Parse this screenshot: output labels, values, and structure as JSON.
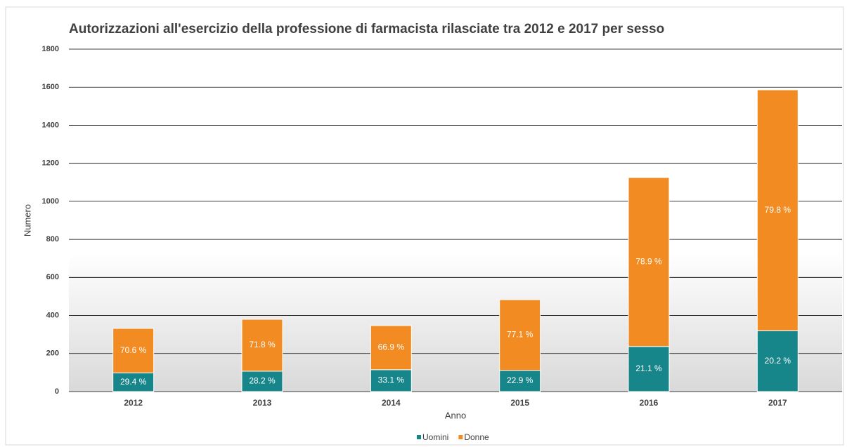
{
  "chart_data": {
    "type": "stacked_bar",
    "title": "Autorizzazioni all'esercizio della professione di farmacista rilasciate tra 2012 e 2017 per sesso",
    "x_label": "Anno",
    "y_label": "Numero",
    "categories": [
      "2012",
      "2013",
      "2014",
      "2015",
      "2016",
      "2017"
    ],
    "series": [
      {
        "name": "Uomini",
        "color": "#17868a",
        "values": [
          98,
          107,
          115,
          111,
          237,
          320
        ],
        "percent_labels": [
          "29.4 %",
          "28.2 %",
          "33.1 %",
          "22.9 %",
          "21.1 %",
          "20.2 %"
        ]
      },
      {
        "name": "Donne",
        "color": "#f28c22",
        "values": [
          234,
          273,
          232,
          372,
          888,
          1266
        ],
        "percent_labels": [
          "70.6 %",
          "71.8 %",
          "66.9 %",
          "77.1 %",
          "78.9 %",
          "79.8 %"
        ]
      }
    ],
    "ylim": [
      0,
      1800
    ],
    "yticks": [
      0,
      200,
      400,
      600,
      800,
      1000,
      1200,
      1400,
      1600,
      1800
    ],
    "grid": true,
    "legend": "bottom"
  }
}
